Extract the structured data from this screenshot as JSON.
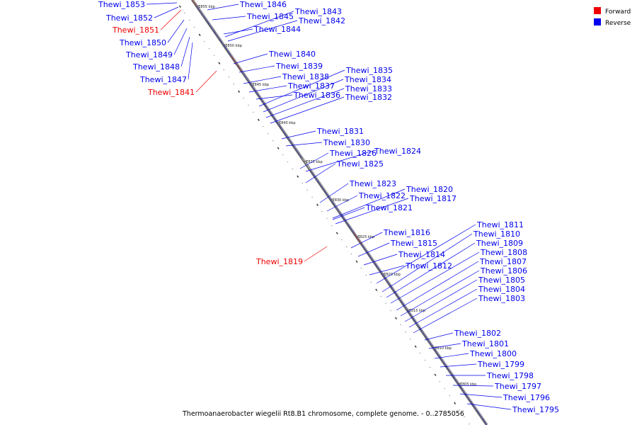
{
  "legend": {
    "forward_label": "Forward",
    "reverse_label": "Reverse",
    "forward_color": "#ee0000",
    "reverse_color": "#0000ee"
  },
  "caption": "Thermoanaerobacter wiegelii Rt8.B1 chromosome, complete genome. - 0..2785056",
  "ticks": [
    "1855 kbp",
    "1850 kbp",
    "1845 kbp",
    "1840 kbp",
    "1835 kbp",
    "1830 kbp",
    "1825 kbp",
    "1820 kbp",
    "1815 kbp",
    "1810 kbp",
    "1805 kbp"
  ],
  "forward_genes": [
    "Thewi_1851",
    "Thewi_1841",
    "Thewi_1819"
  ],
  "reverse_genes": [
    "Thewi_1846",
    "Thewi_1845",
    "Thewi_1844",
    "Thewi_1843",
    "Thewi_1842",
    "Thewi_1840",
    "Thewi_1839",
    "Thewi_1838",
    "Thewi_1837",
    "Thewi_1836",
    "Thewi_1835",
    "Thewi_1834",
    "Thewi_1833",
    "Thewi_1832",
    "Thewi_1831",
    "Thewi_1830",
    "Thewi_1826",
    "Thewi_1825",
    "Thewi_1824",
    "Thewi_1823",
    "Thewi_1822",
    "Thewi_1821",
    "Thewi_1820",
    "Thewi_1817",
    "Thewi_1816",
    "Thewi_1815",
    "Thewi_1814",
    "Thewi_1812",
    "Thewi_1811",
    "Thewi_1810",
    "Thewi_1809",
    "Thewi_1808",
    "Thewi_1807",
    "Thewi_1806",
    "Thewi_1805",
    "Thewi_1804",
    "Thewi_1803",
    "Thewi_1802",
    "Thewi_1801",
    "Thewi_1800",
    "Thewi_1799",
    "Thewi_1798",
    "Thewi_1797",
    "Thewi_1796",
    "Thewi_1795"
  ],
  "left_labels": [
    "Thewi_1853",
    "Thewi_1852",
    "Thewi_1851",
    "Thewi_1850",
    "Thewi_1849",
    "Thewi_1848",
    "Thewi_1847",
    "Thewi_1841",
    "Thewi_1819"
  ]
}
